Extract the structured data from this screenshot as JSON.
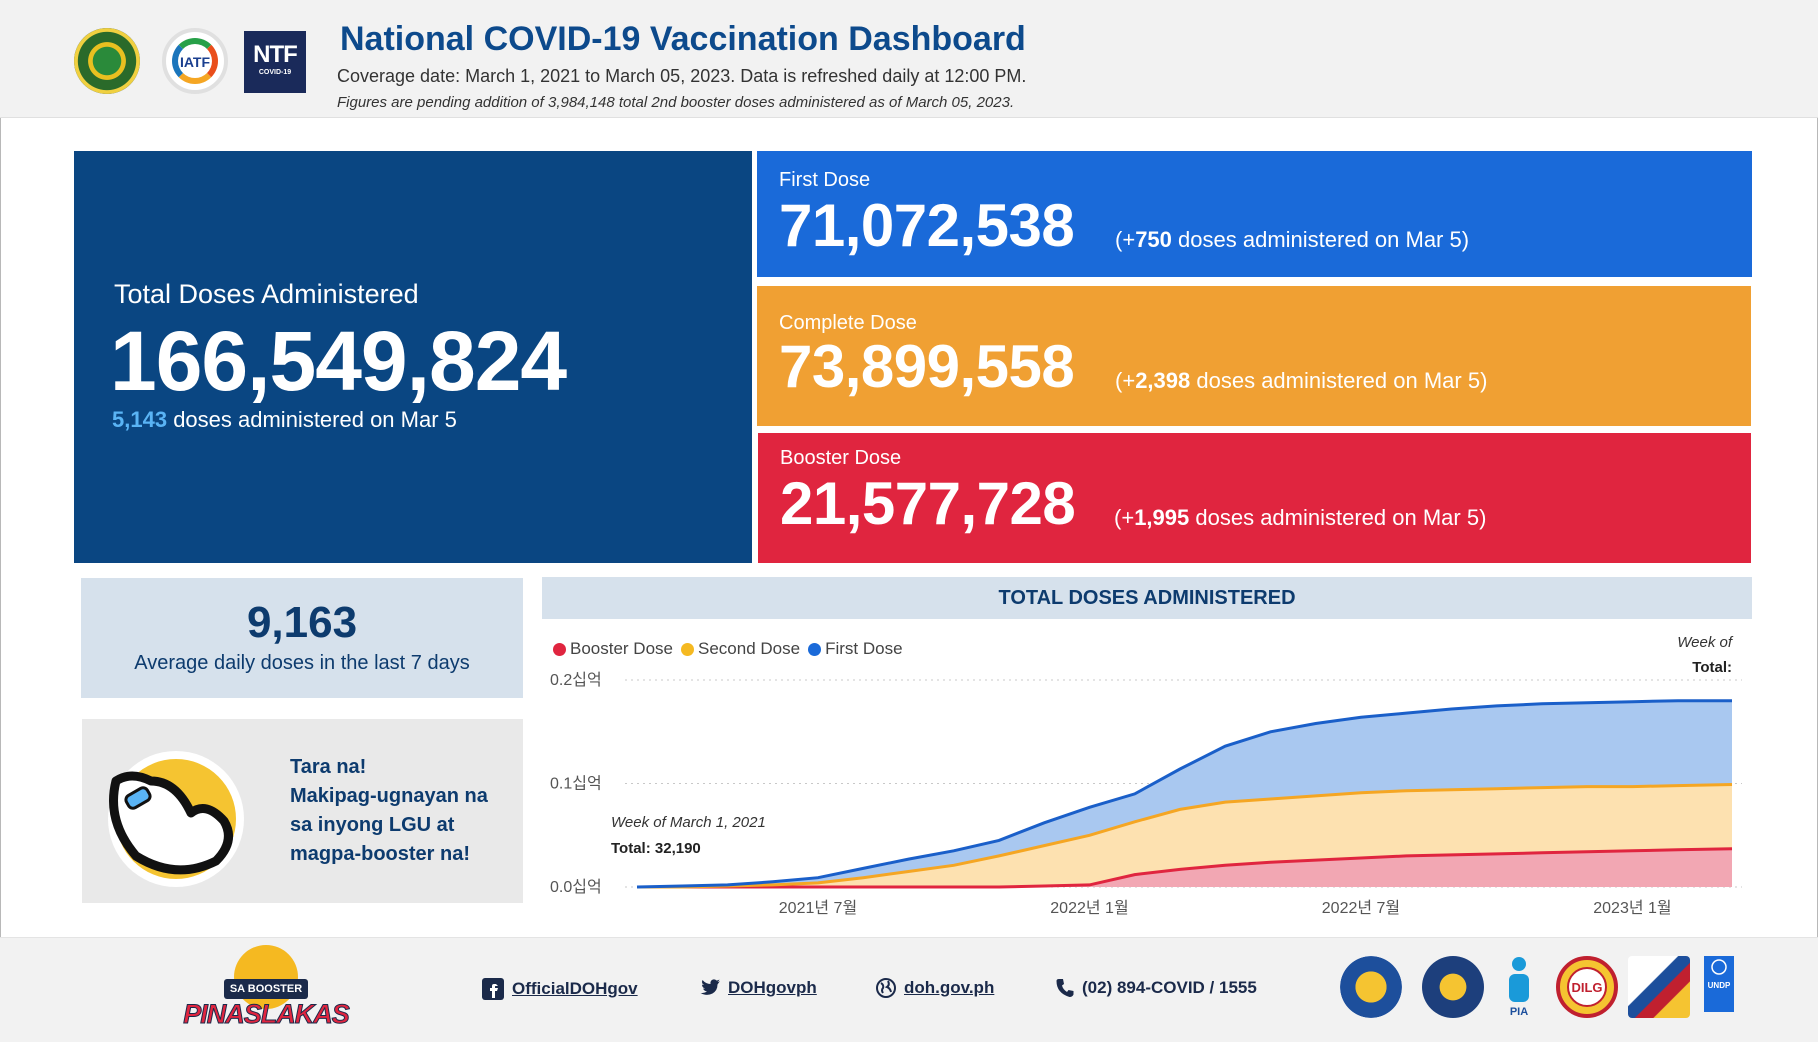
{
  "header": {
    "title": "National COVID-19 Vaccination Dashboard",
    "subtitle": "Coverage date: March 1, 2021 to March 05, 2023. Data is refreshed daily at 12:00 PM.",
    "note": "Figures are pending addition of 3,984,148 total 2nd booster doses administered as of March 05, 2023.",
    "logos": [
      {
        "name": "doh-seal",
        "text": ""
      },
      {
        "name": "iatf-logo",
        "text": "IATF"
      },
      {
        "name": "ntf-logo",
        "text": "NTF",
        "subtext": "COVID-19"
      }
    ]
  },
  "total": {
    "label": "Total Doses Administered",
    "value": "166,549,824",
    "daily": "5,143",
    "daily_suffix": "doses administered on Mar 5"
  },
  "cards": {
    "first": {
      "label": "First Dose",
      "value": "71,072,538",
      "inc_prefix": "(+",
      "inc": "750",
      "inc_suffix": "doses administered on Mar 5)",
      "color": "#1a6ad9"
    },
    "complete": {
      "label": "Complete Dose",
      "value": "73,899,558",
      "inc_prefix": "(+",
      "inc": "2,398",
      "inc_suffix": "doses administered on Mar 5)",
      "color": "#f0a033"
    },
    "booster": {
      "label": "Booster Dose",
      "value": "21,577,728",
      "inc_prefix": "(+",
      "inc": "1,995",
      "inc_suffix": "doses administered on Mar 5)",
      "color": "#e0253f"
    }
  },
  "average": {
    "value": "9,163",
    "label": "Average daily doses in the last 7 days"
  },
  "promo": {
    "lines": [
      "Tara na!",
      "Makipag-ugnayan na",
      "sa inyong LGU at",
      "magpa-booster na!"
    ]
  },
  "chart_data": {
    "type": "area",
    "title": "TOTAL DOSES ADMINISTERED",
    "legend": [
      {
        "name": "Booster Dose",
        "color": "#e0253f"
      },
      {
        "name": "Second Dose",
        "color": "#f5b921"
      },
      {
        "name": "First Dose",
        "color": "#1a6ad9"
      }
    ],
    "y_ticks": [
      "0.0십억",
      "0.1십억",
      "0.2십억"
    ],
    "ylim": [
      0,
      0.2
    ],
    "x_ticks": [
      "2021년 7월",
      "2022년 1월",
      "2022년 7월",
      "2023년 1월"
    ],
    "x_tick_months": [
      4,
      10,
      16,
      22
    ],
    "xlim_months": [
      0,
      24.2
    ],
    "series_units": "billion doses (cumulative, stacked)",
    "x_months": [
      0,
      1,
      2,
      3,
      4,
      5,
      6,
      7,
      8,
      9,
      10,
      11,
      12,
      13,
      14,
      15,
      16,
      17,
      18,
      19,
      20,
      21,
      22,
      23,
      24.2
    ],
    "series": [
      {
        "name": "Booster Dose",
        "values": [
          0,
          0,
          0,
          0,
          0,
          0,
          0,
          0,
          0,
          0.001,
          0.002,
          0.012,
          0.017,
          0.021,
          0.024,
          0.026,
          0.028,
          0.03,
          0.031,
          0.032,
          0.033,
          0.034,
          0.035,
          0.036,
          0.037
        ]
      },
      {
        "name": "Second Dose",
        "values": [
          0,
          0,
          0.001,
          0.002,
          0.004,
          0.009,
          0.015,
          0.021,
          0.03,
          0.04,
          0.05,
          0.063,
          0.075,
          0.082,
          0.085,
          0.088,
          0.091,
          0.093,
          0.094,
          0.095,
          0.096,
          0.097,
          0.097,
          0.098,
          0.099
        ]
      },
      {
        "name": "First Dose",
        "values": [
          0,
          0.001,
          0.002,
          0.005,
          0.009,
          0.018,
          0.027,
          0.035,
          0.045,
          0.062,
          0.077,
          0.09,
          0.114,
          0.136,
          0.15,
          0.158,
          0.164,
          0.168,
          0.172,
          0.175,
          0.177,
          0.178,
          0.179,
          0.18,
          0.18
        ]
      }
    ],
    "header_week": "Week of",
    "header_total": "Total:",
    "tooltip_week": "Week of March 1, 2021",
    "tooltip_total": "Total: 32,190"
  },
  "footer": {
    "brand_tag": "SA BOOSTER",
    "brand_word": "PINASLAKAS",
    "facebook": "OfficialDOHgov",
    "twitter": "DOHgovph",
    "website": "doh.gov.ph",
    "phone": "(02) 894-COVID / 1555",
    "seals": [
      "presidential-seal",
      "pcoo-seal",
      "pia-logo",
      "dilg-seal",
      "cabinet-seal",
      "undp-logo"
    ],
    "pia_text": "PIA",
    "dilg_text": "DILG",
    "undp_text": "UNDP"
  }
}
